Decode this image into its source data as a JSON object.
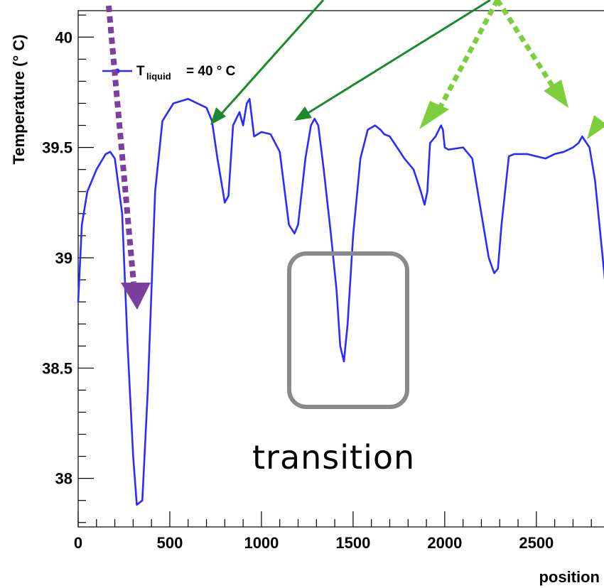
{
  "chart_data": {
    "type": "line",
    "title": "",
    "xlabel": "position",
    "ylabel": "Temperature (° C)",
    "xlim": [
      0,
      2900
    ],
    "ylim": [
      37.78,
      40.12
    ],
    "xticks": [
      0,
      500,
      1000,
      1500,
      2000,
      2500
    ],
    "xtick_labels": [
      "0",
      "500",
      "1000",
      "1500",
      "2000",
      "2500"
    ],
    "yticks": [
      38,
      38.5,
      39,
      39.5,
      40
    ],
    "ytick_labels": [
      "38",
      "38.5",
      "39",
      "39.5",
      "40"
    ],
    "legend": {
      "symbol": "T",
      "subscript": "liquid",
      "rest": "= 40 ° C",
      "placement": "top-left"
    },
    "grid": false,
    "series": [
      {
        "name": "T_liquid = 40 ° C",
        "color": "#2b2bff",
        "x": [
          0,
          20,
          50,
          100,
          150,
          175,
          200,
          240,
          270,
          300,
          320,
          350,
          380,
          420,
          460,
          520,
          600,
          700,
          730,
          760,
          790,
          800,
          820,
          845,
          880,
          900,
          920,
          935,
          960,
          1000,
          1050,
          1100,
          1150,
          1180,
          1200,
          1240,
          1270,
          1290,
          1310,
          1340,
          1380,
          1410,
          1430,
          1450,
          1470,
          1500,
          1540,
          1580,
          1620,
          1650,
          1670,
          1700,
          1780,
          1830,
          1870,
          1890,
          1905,
          1920,
          1950,
          1980,
          1990,
          2000,
          2020,
          2100,
          2150,
          2200,
          2240,
          2270,
          2290,
          2310,
          2350,
          2380,
          2400,
          2450,
          2500,
          2550,
          2600,
          2650,
          2700,
          2730,
          2750,
          2790,
          2820,
          2850,
          2880,
          2900
        ],
        "y": [
          38.8,
          39.15,
          39.3,
          39.4,
          39.47,
          39.48,
          39.45,
          39.2,
          38.6,
          38.1,
          37.88,
          37.9,
          38.4,
          39.3,
          39.62,
          39.7,
          39.72,
          39.68,
          39.62,
          39.45,
          39.3,
          39.25,
          39.28,
          39.6,
          39.66,
          39.6,
          39.7,
          39.72,
          39.55,
          39.57,
          39.56,
          39.48,
          39.15,
          39.11,
          39.15,
          39.45,
          39.6,
          39.63,
          39.6,
          39.4,
          39.1,
          38.85,
          38.6,
          38.53,
          38.7,
          39.1,
          39.45,
          39.58,
          39.6,
          39.58,
          39.56,
          39.55,
          39.45,
          39.4,
          39.3,
          39.24,
          39.3,
          39.52,
          39.55,
          39.6,
          39.58,
          39.5,
          39.49,
          39.5,
          39.45,
          39.2,
          39.0,
          38.93,
          38.95,
          39.15,
          39.46,
          39.47,
          39.47,
          39.47,
          39.46,
          39.45,
          39.47,
          39.48,
          39.5,
          39.52,
          39.55,
          39.5,
          39.35,
          39.1,
          38.85,
          38.8
        ]
      }
    ],
    "annotations": [
      "transition"
    ]
  }
}
